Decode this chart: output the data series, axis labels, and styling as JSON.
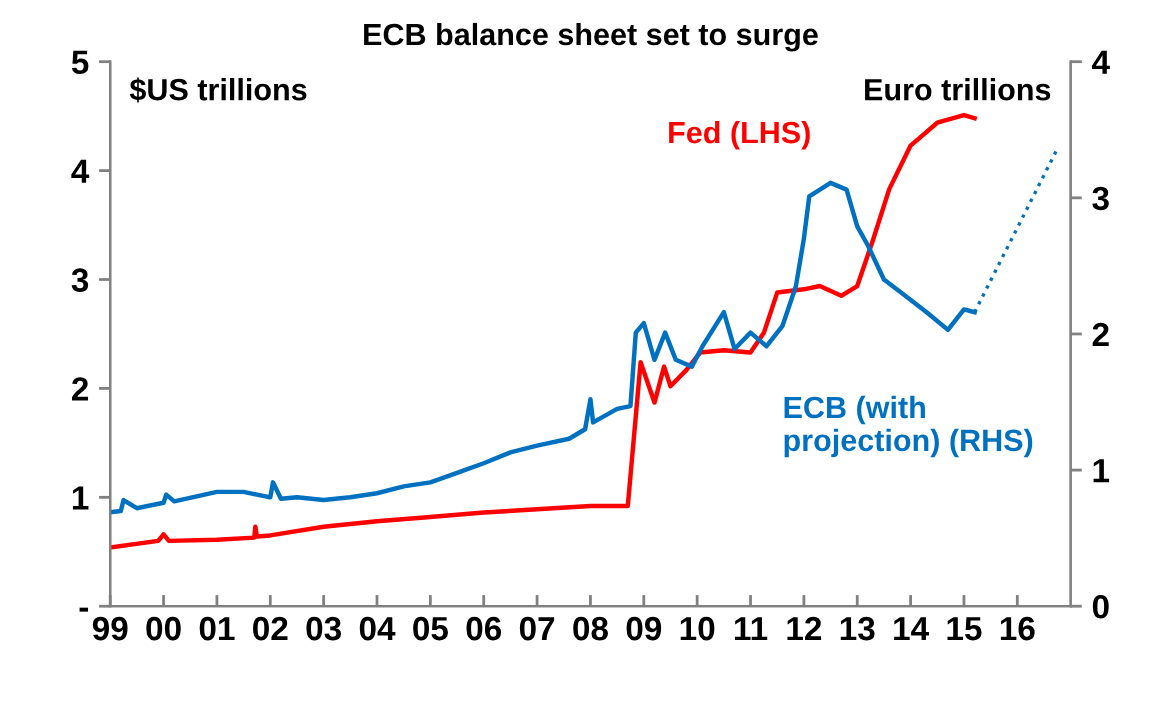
{
  "chart_data": {
    "type": "line",
    "title": "ECB balance sheet set to surge",
    "ylabel": "$US trillions",
    "y2label": "Euro trillions",
    "xlim": [
      1999,
      2017
    ],
    "xticks": [
      {
        "value": 1999,
        "label": "99"
      },
      {
        "value": 2000,
        "label": "00"
      },
      {
        "value": 2001,
        "label": "01"
      },
      {
        "value": 2002,
        "label": "02"
      },
      {
        "value": 2003,
        "label": "03"
      },
      {
        "value": 2004,
        "label": "04"
      },
      {
        "value": 2005,
        "label": "05"
      },
      {
        "value": 2006,
        "label": "06"
      },
      {
        "value": 2007,
        "label": "07"
      },
      {
        "value": 2008,
        "label": "08"
      },
      {
        "value": 2009,
        "label": "09"
      },
      {
        "value": 2010,
        "label": "10"
      },
      {
        "value": 2011,
        "label": "11"
      },
      {
        "value": 2012,
        "label": "12"
      },
      {
        "value": 2013,
        "label": "13"
      },
      {
        "value": 2014,
        "label": "14"
      },
      {
        "value": 2015,
        "label": "15"
      },
      {
        "value": 2016,
        "label": "16"
      }
    ],
    "ylim": [
      0,
      5
    ],
    "yticks": [
      {
        "value": 0,
        "label": "-"
      },
      1,
      2,
      3,
      4,
      5
    ],
    "y2lim": [
      0,
      4
    ],
    "y2ticks": [
      0,
      1,
      2,
      3,
      4
    ],
    "grid": false,
    "legend": false,
    "series": [
      {
        "name": "Fed (LHS)",
        "color": "#ff0000",
        "line_style": "solid",
        "x": [
          1999,
          1999.9,
          2000.0,
          2000.1,
          2001,
          2001.7,
          2001.72,
          2001.75,
          2002,
          2003,
          2004,
          2005,
          2006,
          2007,
          2008,
          2008.7,
          2008.94,
          2009.2,
          2009.38,
          2009.5,
          2009.8,
          2010.06,
          2010.5,
          2011.0,
          2011.25,
          2011.5,
          2012.0,
          2012.3,
          2012.7,
          2013.0,
          2013.3,
          2013.6,
          2014.0,
          2014.5,
          2015.0,
          2015.2
        ],
        "values": [
          0.54,
          0.6,
          0.66,
          0.6,
          0.61,
          0.63,
          0.73,
          0.64,
          0.65,
          0.73,
          0.78,
          0.82,
          0.86,
          0.89,
          0.92,
          0.92,
          2.24,
          1.87,
          2.2,
          2.02,
          2.17,
          2.33,
          2.35,
          2.33,
          2.51,
          2.88,
          2.91,
          2.94,
          2.85,
          2.94,
          3.37,
          3.83,
          4.23,
          4.44,
          4.51,
          4.48
        ]
      },
      {
        "name": "ECB (with projection) (RHS)",
        "axis": "y2",
        "color": "#0070c0",
        "line_style": "solid",
        "x": [
          1999,
          1999.2,
          1999.25,
          1999.5,
          2000,
          2000.05,
          2000.2,
          2001,
          2001.5,
          2002,
          2002.05,
          2002.2,
          2002.5,
          2003,
          2003.5,
          2004,
          2004.5,
          2005,
          2005.5,
          2006,
          2006.5,
          2007,
          2007.6,
          2007.9,
          2008.0,
          2008.05,
          2008.5,
          2008.75,
          2008.85,
          2009.0,
          2009.2,
          2009.4,
          2009.6,
          2009.9,
          2010.1,
          2010.5,
          2010.7,
          2011.0,
          2011.3,
          2011.6,
          2011.85,
          2012.0,
          2012.1,
          2012.5,
          2012.8,
          2013.0,
          2013.2,
          2013.5,
          2013.9,
          2014.3,
          2014.7,
          2015.0,
          2015.2
        ],
        "values": [
          0.69,
          0.7,
          0.78,
          0.72,
          0.76,
          0.82,
          0.77,
          0.84,
          0.84,
          0.8,
          0.91,
          0.79,
          0.8,
          0.78,
          0.8,
          0.83,
          0.88,
          0.91,
          0.98,
          1.05,
          1.13,
          1.18,
          1.23,
          1.3,
          1.52,
          1.35,
          1.45,
          1.47,
          2.01,
          2.08,
          1.81,
          2.01,
          1.81,
          1.76,
          1.91,
          2.16,
          1.89,
          2.01,
          1.91,
          2.06,
          2.35,
          2.7,
          3.01,
          3.11,
          3.06,
          2.79,
          2.65,
          2.4,
          2.28,
          2.16,
          2.03,
          2.18,
          2.16
        ]
      },
      {
        "axis": "y2",
        "color": "#0070c0",
        "line_style": "dotted",
        "x": [
          2015.2,
          2016.75
        ],
        "values": [
          2.16,
          3.36
        ]
      }
    ]
  }
}
